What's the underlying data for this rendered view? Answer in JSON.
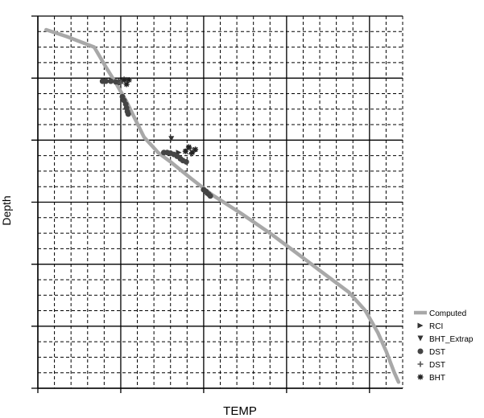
{
  "chart_data": {
    "type": "scatter",
    "xlabel": "TEMP",
    "ylabel": "Depth",
    "x_axis_range": [
      0,
      4.4
    ],
    "y_axis_range": [
      6,
      0
    ],
    "x_major_ticks": [
      0,
      1,
      2,
      3,
      4
    ],
    "y_major_ticks": [
      0,
      1,
      2,
      3,
      4,
      5,
      6
    ],
    "grid": true,
    "legend_placement": "bottom-right",
    "series": [
      {
        "name": "Computed",
        "kind": "line",
        "color": "#a8a8a8",
        "points": [
          [
            0.1,
            0.22
          ],
          [
            0.35,
            0.33
          ],
          [
            0.68,
            0.5
          ],
          [
            0.82,
            0.82
          ],
          [
            0.95,
            1.1
          ],
          [
            1.07,
            1.38
          ],
          [
            1.18,
            1.68
          ],
          [
            1.28,
            1.95
          ],
          [
            1.45,
            2.2
          ],
          [
            1.6,
            2.35
          ],
          [
            1.85,
            2.62
          ],
          [
            2.1,
            2.88
          ],
          [
            2.45,
            3.18
          ],
          [
            2.8,
            3.5
          ],
          [
            3.1,
            3.8
          ],
          [
            3.4,
            4.1
          ],
          [
            3.75,
            4.45
          ],
          [
            3.95,
            4.75
          ],
          [
            4.1,
            5.1
          ],
          [
            4.2,
            5.4
          ],
          [
            4.3,
            5.75
          ],
          [
            4.35,
            5.9
          ]
        ]
      },
      {
        "name": "RCI",
        "kind": "marker",
        "marker": "triangle-right",
        "color": "#333333",
        "points": [
          [
            1.0,
            1.05
          ],
          [
            1.7,
            2.2
          ],
          [
            2.05,
            2.85
          ]
        ]
      },
      {
        "name": "BHT_Extrap",
        "kind": "marker",
        "marker": "triangle-down",
        "color": "#333333",
        "points": [
          [
            1.61,
            1.98
          ]
        ]
      },
      {
        "name": "DST",
        "kind": "marker",
        "marker": "circle",
        "color": "#444444",
        "points": [
          [
            0.78,
            1.05
          ],
          [
            0.82,
            1.05
          ],
          [
            0.88,
            1.05
          ],
          [
            0.94,
            1.06
          ],
          [
            0.98,
            1.07
          ],
          [
            1.02,
            1.3
          ],
          [
            1.04,
            1.36
          ],
          [
            1.06,
            1.42
          ],
          [
            1.07,
            1.48
          ],
          [
            1.08,
            1.54
          ],
          [
            1.09,
            1.58
          ],
          [
            1.52,
            2.2
          ],
          [
            1.56,
            2.2
          ],
          [
            1.6,
            2.21
          ],
          [
            1.64,
            2.23
          ],
          [
            1.68,
            2.26
          ],
          [
            1.72,
            2.3
          ],
          [
            1.75,
            2.33
          ],
          [
            1.79,
            2.35
          ],
          [
            2.0,
            2.8
          ],
          [
            2.03,
            2.83
          ],
          [
            2.06,
            2.87
          ],
          [
            2.08,
            2.9
          ]
        ]
      },
      {
        "name": "DST",
        "kind": "marker",
        "marker": "plus",
        "color": "#555555",
        "points": [
          [
            1.02,
            1.05
          ],
          [
            1.05,
            1.04
          ],
          [
            1.08,
            1.03
          ],
          [
            1.0,
            1.08
          ],
          [
            1.8,
            2.15
          ],
          [
            1.84,
            2.13
          ],
          [
            1.88,
            2.18
          ],
          [
            1.85,
            2.22
          ]
        ]
      },
      {
        "name": "BHT",
        "kind": "marker",
        "marker": "asterisk",
        "color": "#222222",
        "points": [
          [
            1.04,
            1.02
          ],
          [
            1.1,
            1.03
          ],
          [
            1.07,
            1.1
          ],
          [
            1.78,
            2.18
          ],
          [
            1.82,
            2.11
          ],
          [
            1.86,
            2.2
          ],
          [
            1.9,
            2.15
          ]
        ]
      }
    ]
  }
}
